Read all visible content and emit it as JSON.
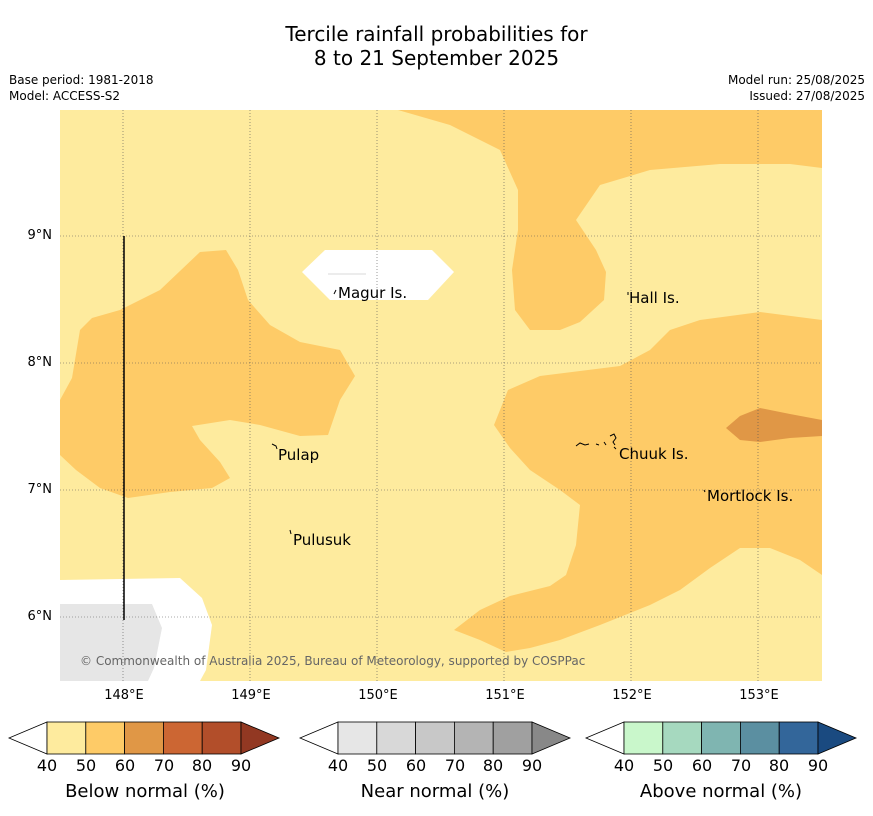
{
  "title_line1": "Tercile rainfall probabilities for",
  "title_line2": "8 to 21 September 2025",
  "base_period": "Base period: 1981-2018",
  "model": "Model: ACCESS-S2",
  "model_run": "Model run: 25/08/2025",
  "issued": "Issued: 27/08/2025",
  "copyright": "© Commonwealth of Australia 2025, Bureau of Meteorology, supported by COSPPac",
  "map": {
    "lon_ticks": [
      "148°E",
      "149°E",
      "150°E",
      "151°E",
      "152°E",
      "153°E"
    ],
    "lat_ticks": [
      "9°N",
      "8°N",
      "7°N",
      "6°N"
    ],
    "places": [
      "Magur Is.",
      "Hall Is.",
      "Pulap",
      "Chuuk Is.",
      "Mortlock Is.",
      "Pulusuk"
    ]
  },
  "colorbars": [
    {
      "label": "Below normal (%)",
      "ticks": [
        "40",
        "50",
        "60",
        "70",
        "80",
        "90"
      ],
      "colors": [
        "#ffffff",
        "#feeb9e",
        "#fecb67",
        "#e09746",
        "#cc6633",
        "#b24e2a",
        "#923822"
      ]
    },
    {
      "label": "Near normal (%)",
      "ticks": [
        "40",
        "50",
        "60",
        "70",
        "80",
        "90"
      ],
      "colors": [
        "#ffffff",
        "#e6e6e6",
        "#d8d8d8",
        "#c8c8c8",
        "#b4b4b4",
        "#a0a0a0",
        "#888888"
      ]
    },
    {
      "label": "Above normal (%)",
      "ticks": [
        "40",
        "50",
        "60",
        "70",
        "80",
        "90"
      ],
      "colors": [
        "#ffffff",
        "#c9f7cb",
        "#a6d9bf",
        "#7fb5b1",
        "#5b8fa1",
        "#33669a",
        "#1a4a80"
      ]
    }
  ],
  "colors": {
    "below_50": "#feeb9e",
    "below_60": "#fecb67",
    "below_70": "#e09746",
    "near_50": "#e6e6e6"
  }
}
